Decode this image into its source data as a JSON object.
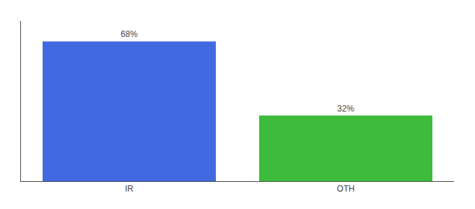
{
  "chart_data": {
    "type": "bar",
    "categories": [
      "IR",
      "OTH"
    ],
    "values": [
      68,
      32
    ],
    "value_labels": [
      "68%",
      "32%"
    ],
    "colors": [
      "#4169e1",
      "#3dbb3d"
    ],
    "ylim": [
      0,
      78
    ],
    "grid": false,
    "data_labels": true,
    "tick_labels": "x"
  }
}
